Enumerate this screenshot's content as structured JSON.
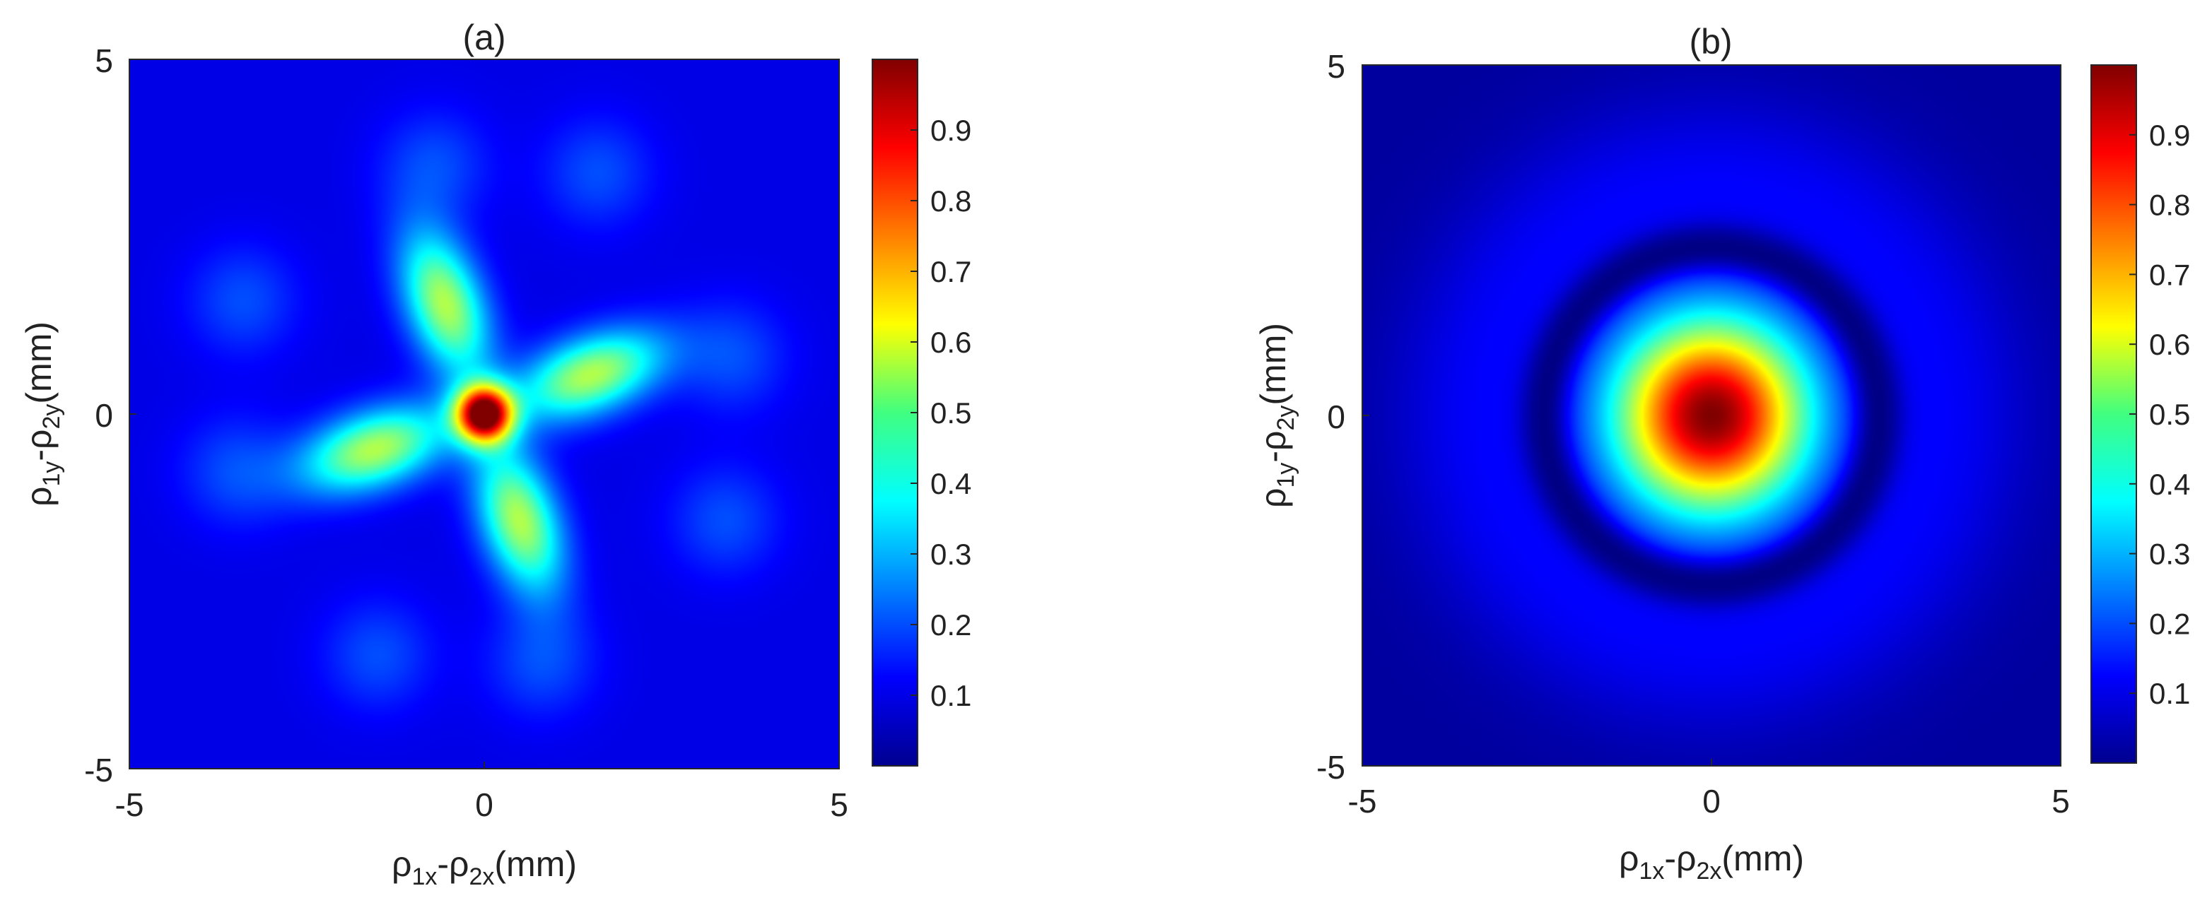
{
  "chart_data": [
    {
      "type": "heatmap",
      "title": "(a)",
      "xlabel": {
        "base1": "ρ",
        "sub1": "1x",
        "dash": "-",
        "base2": "ρ",
        "sub2": "2x",
        "unit": "(mm)"
      },
      "ylabel": {
        "base1": "ρ",
        "sub1": "1y",
        "dash": "-",
        "base2": "ρ",
        "sub2": "2y",
        "unit": "(mm)"
      },
      "xlim": [
        -5,
        5
      ],
      "ylim": [
        -5,
        5
      ],
      "xticks": [
        "-5",
        "0",
        "5"
      ],
      "yticks": [
        "5",
        "0",
        "-5"
      ],
      "colormap": "jet",
      "clim": [
        0,
        1
      ],
      "colorbar_ticks": [
        "0.1",
        "0.2",
        "0.3",
        "0.4",
        "0.5",
        "0.6",
        "0.7",
        "0.8",
        "0.9"
      ],
      "pattern": "four-lobed cross rotated ~30°: central peak 1.0 at origin, four elongated lobes ~0.55 at radius ~1.7 mm, weak satellite ring ~0.2 at radius ~3.6 mm, background ~0.1",
      "features": [
        {
          "kind": "peak",
          "x": 0,
          "y": 0,
          "value": 1.0
        },
        {
          "kind": "lobe",
          "x": -0.55,
          "y": 1.55,
          "value": 0.55
        },
        {
          "kind": "lobe",
          "x": 1.5,
          "y": 0.55,
          "value": 0.55
        },
        {
          "kind": "lobe",
          "x": 0.5,
          "y": -1.5,
          "value": 0.55
        },
        {
          "kind": "lobe",
          "x": -1.55,
          "y": -0.5,
          "value": 0.55
        },
        {
          "kind": "satellite",
          "x": -0.7,
          "y": 3.5,
          "value": 0.2
        },
        {
          "kind": "satellite",
          "x": 1.6,
          "y": 3.4,
          "value": 0.2
        },
        {
          "kind": "satellite",
          "x": 3.5,
          "y": 0.8,
          "value": 0.2
        },
        {
          "kind": "satellite",
          "x": 3.4,
          "y": -1.5,
          "value": 0.2
        },
        {
          "kind": "satellite",
          "x": 0.8,
          "y": -3.5,
          "value": 0.2
        },
        {
          "kind": "satellite",
          "x": -1.5,
          "y": -3.4,
          "value": 0.2
        },
        {
          "kind": "satellite",
          "x": -3.5,
          "y": -0.8,
          "value": 0.2
        },
        {
          "kind": "satellite",
          "x": -3.4,
          "y": 1.6,
          "value": 0.2
        }
      ]
    },
    {
      "type": "heatmap",
      "title": "(b)",
      "xlabel": {
        "base1": "ρ",
        "sub1": "1x",
        "dash": "-",
        "base2": "ρ",
        "sub2": "2x",
        "unit": "(mm)"
      },
      "ylabel": {
        "base1": "ρ",
        "sub1": "1y",
        "dash": "-",
        "base2": "ρ",
        "sub2": "2y",
        "unit": "(mm)"
      },
      "xlim": [
        -5,
        5
      ],
      "ylim": [
        -5,
        5
      ],
      "xticks": [
        "-5",
        "0",
        "5"
      ],
      "yticks": [
        "5",
        "0",
        "-5"
      ],
      "colormap": "jet",
      "clim": [
        0,
        1
      ],
      "colorbar_ticks": [
        "0.1",
        "0.2",
        "0.3",
        "0.4",
        "0.5",
        "0.6",
        "0.7",
        "0.8",
        "0.9"
      ],
      "pattern": "single circular Airy-like spot: peak 1.0 at origin, half maximum near radius ~1.2 mm, dark ring near radius ~2.4 mm, faint background ~0.05",
      "features": [
        {
          "kind": "peak",
          "x": 0,
          "y": 0,
          "value": 1.0
        },
        {
          "kind": "dark-ring",
          "radius": 2.4,
          "value": 0.0
        }
      ]
    }
  ]
}
